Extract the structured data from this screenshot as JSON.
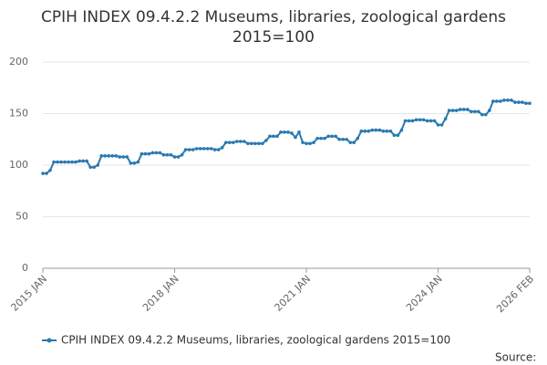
{
  "chart_data": {
    "type": "line",
    "title": "CPIH INDEX 09.4.2.2 Museums, libraries, zoological gardens 2015=100",
    "source": "Source:",
    "categories": [
      "2015 JAN",
      null,
      null,
      null,
      null,
      null,
      null,
      null,
      null,
      null,
      null,
      null,
      null,
      null,
      null,
      null,
      null,
      null,
      null,
      null,
      null,
      null,
      null,
      null,
      null,
      null,
      null,
      null,
      null,
      null,
      null,
      null,
      null,
      null,
      null,
      null,
      "2018 JAN",
      null,
      null,
      null,
      null,
      null,
      null,
      null,
      null,
      null,
      null,
      null,
      null,
      null,
      null,
      null,
      null,
      null,
      null,
      null,
      null,
      null,
      null,
      null,
      null,
      null,
      null,
      null,
      null,
      null,
      null,
      null,
      null,
      null,
      null,
      null,
      "2021 JAN",
      null,
      null,
      null,
      null,
      null,
      null,
      null,
      null,
      null,
      null,
      null,
      null,
      null,
      null,
      null,
      null,
      null,
      null,
      null,
      null,
      null,
      null,
      null,
      null,
      null,
      null,
      null,
      null,
      null,
      null,
      null,
      null,
      null,
      null,
      null,
      "2024 JAN",
      null,
      null,
      null,
      null,
      null,
      null,
      null,
      null,
      null,
      null,
      null,
      null,
      null,
      null,
      null,
      null,
      null,
      null,
      null,
      null,
      null,
      null,
      null,
      null,
      "2026 FEB"
    ],
    "series": [
      {
        "name": "CPIH INDEX 09.4.2.2 Museums, libraries, zoological gardens 2015=100",
        "color": "#2a7ab0",
        "values": [
          92,
          92,
          95,
          103,
          103,
          103,
          103,
          103,
          103,
          103,
          104,
          104,
          104,
          98,
          98,
          100,
          109,
          109,
          109,
          109,
          109,
          108,
          108,
          108,
          102,
          102,
          103,
          111,
          111,
          111,
          112,
          112,
          112,
          110,
          110,
          110,
          108,
          108,
          110,
          115,
          115,
          115,
          116,
          116,
          116,
          116,
          116,
          115,
          115,
          117,
          122,
          122,
          122,
          123,
          123,
          123,
          121,
          121,
          121,
          121,
          121,
          124,
          128,
          128,
          128,
          132,
          132,
          132,
          131,
          127,
          132,
          122,
          121,
          121,
          122,
          126,
          126,
          126,
          128,
          128,
          128,
          125,
          125,
          125,
          122,
          122,
          126,
          133,
          133,
          133,
          134,
          134,
          134,
          133,
          133,
          133,
          129,
          129,
          134,
          143,
          143,
          143,
          144,
          144,
          144,
          143,
          143,
          143,
          139,
          139,
          145,
          153,
          153,
          153,
          154,
          154,
          154,
          152,
          152,
          152,
          149,
          149,
          153,
          162,
          162,
          162,
          163,
          163,
          163,
          161,
          161,
          161,
          160,
          160
        ]
      }
    ],
    "ylim": [
      0,
      200
    ],
    "yticks": [
      0,
      50,
      100,
      150,
      200
    ],
    "grid": true
  }
}
